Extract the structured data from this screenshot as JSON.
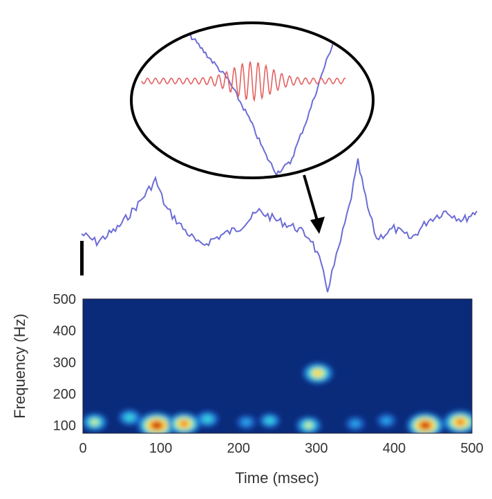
{
  "chart_data": {
    "type": "heatmap",
    "xlabel": "Time (msec)",
    "ylabel": "Frequency (Hz)",
    "xlim": [
      0,
      500
    ],
    "ylim": [
      75,
      500
    ],
    "xticks": [
      "0",
      "100",
      "200",
      "300",
      "400",
      "500"
    ],
    "yticks": [
      "100",
      "200",
      "300",
      "400",
      "500"
    ],
    "background_color": "#0a2a7a",
    "colormap": [
      "#0a2a7a",
      "#1a5cc8",
      "#2aa8e8",
      "#40e0d0",
      "#ffff40",
      "#ffa020",
      "#e02010",
      "#800000"
    ],
    "trace_color": "#6b6bd6",
    "inset_trace_color": "#e46060",
    "hotspots": [
      {
        "time": 15,
        "freq": 110,
        "intensity": 0.55
      },
      {
        "time": 60,
        "freq": 125,
        "intensity": 0.45
      },
      {
        "time": 95,
        "freq": 100,
        "intensity": 1.0
      },
      {
        "time": 130,
        "freq": 105,
        "intensity": 0.8
      },
      {
        "time": 160,
        "freq": 120,
        "intensity": 0.45
      },
      {
        "time": 210,
        "freq": 110,
        "intensity": 0.35
      },
      {
        "time": 240,
        "freq": 115,
        "intensity": 0.4
      },
      {
        "time": 290,
        "freq": 100,
        "intensity": 0.55
      },
      {
        "time": 302,
        "freq": 265,
        "intensity": 0.72
      },
      {
        "time": 350,
        "freq": 105,
        "intensity": 0.35
      },
      {
        "time": 390,
        "freq": 115,
        "intensity": 0.35
      },
      {
        "time": 440,
        "freq": 100,
        "intensity": 0.95
      },
      {
        "time": 485,
        "freq": 110,
        "intensity": 0.85
      }
    ]
  }
}
